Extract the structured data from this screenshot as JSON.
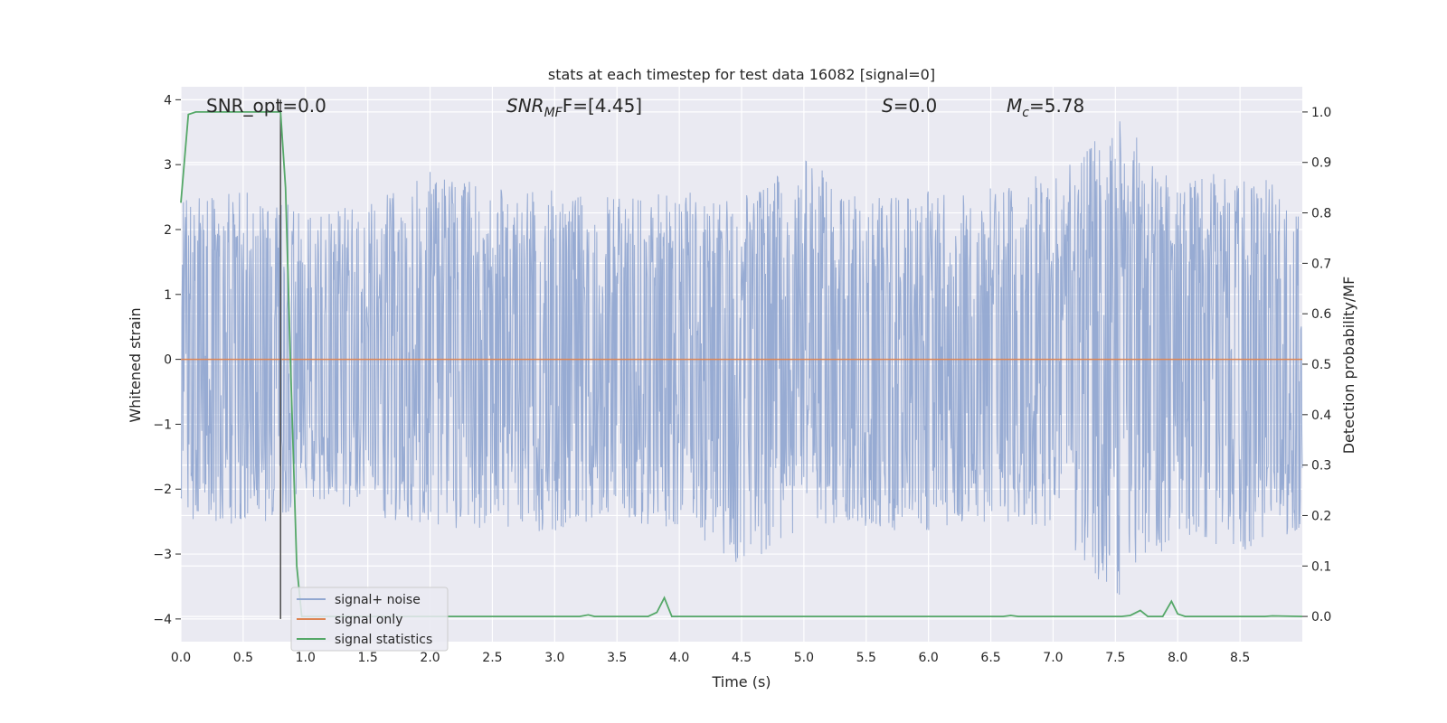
{
  "chart_data": {
    "type": "line",
    "title": "stats at each timestep for test data 16082 [signal=0]",
    "xlabel": "Time (s)",
    "ylabel": "Whitened strain",
    "y2label": "Detection probability/MF",
    "xlim": [
      0.0,
      9.0
    ],
    "ylim": [
      -4.35,
      4.2
    ],
    "y2lim": [
      -0.05,
      1.05
    ],
    "xticks": [
      "0.0",
      "0.5",
      "1.0",
      "1.5",
      "2.0",
      "2.5",
      "3.0",
      "3.5",
      "4.0",
      "4.5",
      "5.0",
      "5.5",
      "6.0",
      "6.5",
      "7.0",
      "7.5",
      "8.0",
      "8.5"
    ],
    "yticks": [
      "4",
      "3",
      "2",
      "1",
      "0",
      "−1",
      "−2",
      "−3",
      "−4"
    ],
    "y2ticks": [
      "1.0",
      "0.9",
      "0.8",
      "0.7",
      "0.6",
      "0.5",
      "0.4",
      "0.3",
      "0.2",
      "0.1",
      "0.0"
    ],
    "grid": true,
    "legend_position": "lower-left",
    "annotations": {
      "snr_opt": "SNR_opt=0.0",
      "snr_mf_main": "SNR",
      "snr_mf_sub": "MF",
      "snr_mf_value": "F=[4.45]",
      "s_main": "S",
      "s_value": "=0.0",
      "mc_main": "M",
      "mc_sub": "c",
      "mc_value": "=5.78"
    },
    "vline_x": 0.8,
    "series": [
      {
        "name": "signal+ noise",
        "color": "#92a8d1",
        "axis": "left",
        "envelope_upper": [
          [
            0.0,
            2.5
          ],
          [
            0.5,
            2.6
          ],
          [
            1.0,
            2.3
          ],
          [
            1.5,
            2.4
          ],
          [
            2.0,
            2.9
          ],
          [
            2.5,
            2.7
          ],
          [
            3.0,
            2.6
          ],
          [
            3.5,
            2.5
          ],
          [
            4.0,
            2.6
          ],
          [
            4.5,
            2.5
          ],
          [
            5.0,
            3.1
          ],
          [
            5.5,
            2.5
          ],
          [
            6.0,
            2.6
          ],
          [
            6.5,
            2.7
          ],
          [
            7.0,
            2.9
          ],
          [
            7.5,
            3.8
          ],
          [
            8.0,
            2.7
          ],
          [
            8.5,
            3.0
          ],
          [
            9.0,
            2.6
          ]
        ],
        "envelope_lower": [
          [
            0.0,
            -2.5
          ],
          [
            0.5,
            -2.6
          ],
          [
            1.0,
            -2.3
          ],
          [
            1.5,
            -2.4
          ],
          [
            2.0,
            -2.6
          ],
          [
            2.5,
            -2.6
          ],
          [
            3.0,
            -2.7
          ],
          [
            3.5,
            -2.5
          ],
          [
            4.0,
            -2.7
          ],
          [
            4.5,
            -3.2
          ],
          [
            5.0,
            -2.6
          ],
          [
            5.5,
            -2.6
          ],
          [
            6.0,
            -2.7
          ],
          [
            6.5,
            -2.5
          ],
          [
            7.0,
            -2.6
          ],
          [
            7.5,
            -3.8
          ],
          [
            8.0,
            -2.7
          ],
          [
            8.5,
            -3.0
          ],
          [
            9.0,
            -2.6
          ]
        ]
      },
      {
        "name": "signal only",
        "color": "#dd8452",
        "axis": "left",
        "points": [
          [
            0.0,
            0.0
          ],
          [
            9.0,
            0.0
          ]
        ]
      },
      {
        "name": "signal statistics",
        "color": "#55a868",
        "axis": "right",
        "points": [
          [
            0.0,
            0.82
          ],
          [
            0.06,
            0.995
          ],
          [
            0.12,
            1.0
          ],
          [
            0.8,
            1.0
          ],
          [
            0.84,
            0.85
          ],
          [
            0.88,
            0.5
          ],
          [
            0.93,
            0.1
          ],
          [
            0.97,
            0.0
          ],
          [
            3.2,
            0.0
          ],
          [
            3.27,
            0.003
          ],
          [
            3.32,
            0.0
          ],
          [
            3.75,
            0.0
          ],
          [
            3.82,
            0.008
          ],
          [
            3.88,
            0.037
          ],
          [
            3.94,
            0.0
          ],
          [
            6.6,
            0.0
          ],
          [
            6.66,
            0.002
          ],
          [
            6.72,
            0.0
          ],
          [
            7.55,
            0.0
          ],
          [
            7.62,
            0.002
          ],
          [
            7.7,
            0.012
          ],
          [
            7.76,
            0.0
          ],
          [
            7.88,
            0.0
          ],
          [
            7.95,
            0.03
          ],
          [
            8.0,
            0.005
          ],
          [
            8.06,
            0.0
          ],
          [
            8.7,
            0.0
          ],
          [
            8.76,
            0.001
          ],
          [
            9.0,
            0.0
          ]
        ]
      }
    ]
  }
}
